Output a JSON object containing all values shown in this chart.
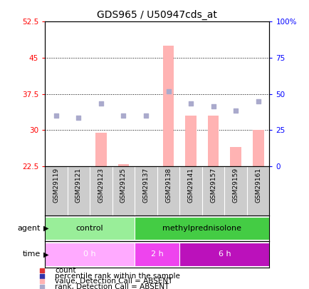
{
  "title": "GDS965 / U50947cds_at",
  "samples": [
    "GSM29119",
    "GSM29121",
    "GSM29123",
    "GSM29125",
    "GSM29137",
    "GSM29138",
    "GSM29141",
    "GSM29157",
    "GSM29159",
    "GSM29161"
  ],
  "bar_values": [
    22.5,
    22.5,
    29.5,
    23.0,
    22.5,
    47.5,
    33.0,
    33.0,
    26.5,
    30.0
  ],
  "dot_values": [
    33.0,
    32.5,
    35.5,
    33.0,
    33.0,
    38.0,
    35.5,
    35.0,
    34.0,
    36.0
  ],
  "ylim_left": [
    22.5,
    52.5
  ],
  "ylim_right": [
    0,
    100
  ],
  "yticks_left": [
    22.5,
    30.0,
    37.5,
    45.0,
    52.5
  ],
  "ytick_labels_left": [
    "22.5",
    "30",
    "37.5",
    "45",
    "52.5"
  ],
  "yticks_right": [
    0,
    25,
    50,
    75,
    100
  ],
  "ytick_labels_right": [
    "0",
    "25",
    "50",
    "75",
    "100%"
  ],
  "grid_yticks": [
    30.0,
    37.5,
    45.0
  ],
  "bar_color": "#ffb3b3",
  "dot_color": "#aaaacc",
  "bar_bottom": 22.5,
  "agent_groups": [
    {
      "label": "control",
      "start": 0,
      "end": 4,
      "color": "#99ee99"
    },
    {
      "label": "methylprednisolone",
      "start": 4,
      "end": 10,
      "color": "#44cc44"
    }
  ],
  "time_groups": [
    {
      "label": "0 h",
      "start": 0,
      "end": 4,
      "color": "#ffaaff"
    },
    {
      "label": "2 h",
      "start": 4,
      "end": 6,
      "color": "#ee44ee"
    },
    {
      "label": "6 h",
      "start": 6,
      "end": 10,
      "color": "#bb11bb"
    }
  ],
  "legend_items": [
    {
      "label": "count",
      "color": "#dd3333"
    },
    {
      "label": "percentile rank within the sample",
      "color": "#3333aa"
    },
    {
      "label": "value, Detection Call = ABSENT",
      "color": "#ffb3b3"
    },
    {
      "label": "rank, Detection Call = ABSENT",
      "color": "#aaaacc"
    }
  ],
  "agent_label": "agent",
  "time_label": "time",
  "sample_bg_color": "#cccccc",
  "sample_divider_color": "#ffffff",
  "background_color": "#ffffff",
  "n_samples": 10
}
